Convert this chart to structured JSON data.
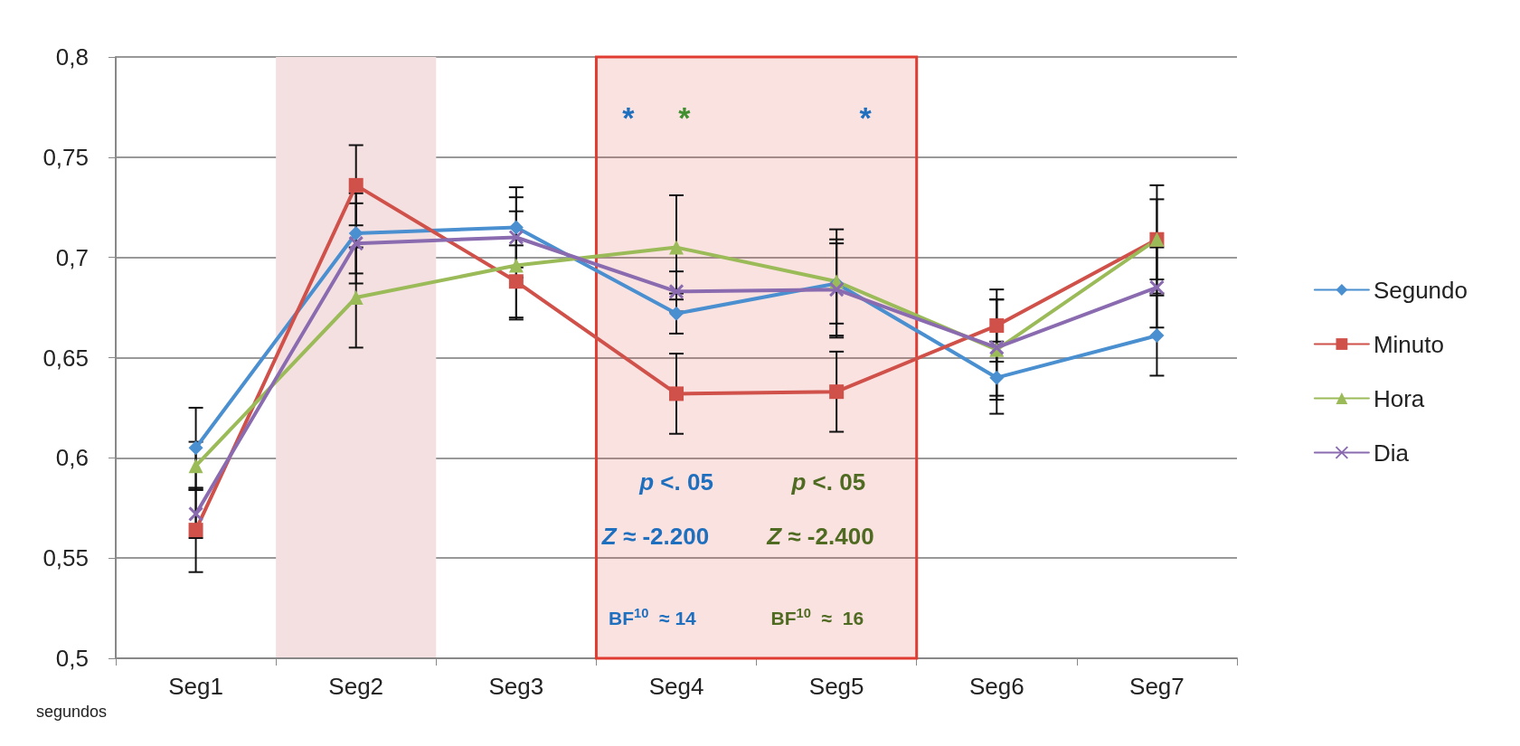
{
  "chart_data": {
    "type": "line",
    "xlabel": "segundos",
    "categories": [
      "Seg1",
      "Seg2",
      "Seg3",
      "Seg4",
      "Seg5",
      "Seg6",
      "Seg7"
    ],
    "series": [
      {
        "name": "Segundo",
        "color": "#4a8fd0",
        "marker": "diamond",
        "values": [
          0.605,
          0.712,
          0.715,
          0.672,
          0.687,
          0.64,
          0.661
        ],
        "errors": [
          0.02,
          0.02,
          0.02,
          0.01,
          0.027,
          0.018,
          0.02
        ]
      },
      {
        "name": "Minuto",
        "color": "#d0504a",
        "marker": "square",
        "values": [
          0.564,
          0.736,
          0.688,
          0.632,
          0.633,
          0.666,
          0.709
        ],
        "errors": [
          0.021,
          0.02,
          0.018,
          0.02,
          0.02,
          0.018,
          0.027
        ]
      },
      {
        "name": "Hora",
        "color": "#9bbb59",
        "marker": "triangle",
        "values": [
          0.596,
          0.68,
          0.696,
          0.705,
          0.688,
          0.654,
          0.709
        ],
        "errors": [
          0.012,
          0.025,
          0.027,
          0.026,
          0.021,
          0.025,
          0.02
        ]
      },
      {
        "name": "Dia",
        "color": "#8a6bb0",
        "marker": "cross",
        "values": [
          0.572,
          0.707,
          0.71,
          0.683,
          0.684,
          0.655,
          0.685
        ],
        "errors": [
          0.012,
          0.02,
          0.02,
          0.01,
          0.023,
          0.024,
          0.02
        ]
      }
    ],
    "ylim": [
      0.5,
      0.8
    ],
    "yticks": [
      {
        "value": 0.5,
        "label": "0,5"
      },
      {
        "value": 0.55,
        "label": "0,55"
      },
      {
        "value": 0.6,
        "label": "0,6"
      },
      {
        "value": 0.65,
        "label": "0,65"
      },
      {
        "value": 0.7,
        "label": "0,7"
      },
      {
        "value": 0.75,
        "label": "0,75"
      },
      {
        "value": 0.8,
        "label": "0,8"
      }
    ],
    "grid": "y",
    "legend": "right",
    "bands": [
      {
        "axis": "x",
        "from": "Seg2",
        "to": "Seg2",
        "color": "#f4e0e1"
      },
      {
        "axis": "x",
        "from": "Seg4",
        "to": "Seg5",
        "color": "#e03c31"
      }
    ],
    "annotations": [
      "*",
      "*",
      "*",
      "p <. 05",
      "p <. 05",
      "Z ≈ -2.200",
      "Z ≈ -2.400",
      "BF$^{10}$  ≈ 14",
      "BF$^{10}$  ≈  16"
    ]
  }
}
